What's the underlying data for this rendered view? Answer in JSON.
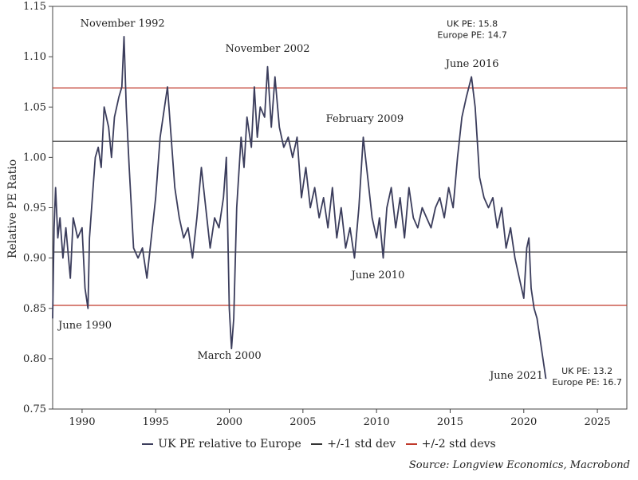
{
  "chart_data": {
    "type": "line",
    "ylabel": "Relative PE Ratio",
    "xlabel": "",
    "xlim": [
      1988,
      2027
    ],
    "ylim": [
      0.75,
      1.15
    ],
    "x_ticks": [
      1990,
      1995,
      2000,
      2005,
      2010,
      2015,
      2020,
      2025
    ],
    "y_ticks": [
      0.75,
      0.8,
      0.85,
      0.9,
      0.95,
      1.0,
      1.05,
      1.1,
      1.15
    ],
    "series": [
      {
        "name": "UK PE relative to Europe",
        "color": "#3b3d5c",
        "x": [
          1988.0,
          1988.1,
          1988.2,
          1988.35,
          1988.5,
          1988.7,
          1988.9,
          1989.2,
          1989.4,
          1989.7,
          1990.0,
          1990.2,
          1990.4,
          1990.5,
          1990.7,
          1990.9,
          1991.1,
          1991.3,
          1991.5,
          1991.8,
          1992.0,
          1992.2,
          1992.5,
          1992.7,
          1992.85,
          1993.0,
          1993.2,
          1993.5,
          1993.8,
          1994.1,
          1994.4,
          1994.7,
          1995.0,
          1995.3,
          1995.6,
          1995.8,
          1996.0,
          1996.3,
          1996.6,
          1996.9,
          1997.2,
          1997.5,
          1997.8,
          1998.1,
          1998.4,
          1998.7,
          1999.0,
          1999.3,
          1999.6,
          1999.8,
          2000.0,
          2000.15,
          2000.3,
          2000.5,
          2000.8,
          2001.0,
          2001.2,
          2001.5,
          2001.7,
          2001.9,
          2002.1,
          2002.4,
          2002.6,
          2002.85,
          2003.1,
          2003.4,
          2003.7,
          2004.0,
          2004.3,
          2004.6,
          2004.9,
          2005.2,
          2005.5,
          2005.8,
          2006.1,
          2006.4,
          2006.7,
          2007.0,
          2007.3,
          2007.6,
          2007.9,
          2008.2,
          2008.5,
          2008.8,
          2009.1,
          2009.4,
          2009.7,
          2010.0,
          2010.2,
          2010.45,
          2010.7,
          2011.0,
          2011.3,
          2011.6,
          2011.9,
          2012.2,
          2012.5,
          2012.8,
          2013.1,
          2013.4,
          2013.7,
          2014.0,
          2014.3,
          2014.6,
          2014.9,
          2015.2,
          2015.5,
          2015.8,
          2016.1,
          2016.45,
          2016.7,
          2017.0,
          2017.3,
          2017.6,
          2017.9,
          2018.2,
          2018.5,
          2018.8,
          2019.1,
          2019.4,
          2019.7,
          2020.0,
          2020.2,
          2020.35,
          2020.5,
          2020.7,
          2020.9,
          2021.1,
          2021.3,
          2021.5
        ],
        "y": [
          0.84,
          0.93,
          0.97,
          0.92,
          0.94,
          0.9,
          0.93,
          0.88,
          0.94,
          0.92,
          0.93,
          0.87,
          0.85,
          0.92,
          0.96,
          1.0,
          1.01,
          0.99,
          1.05,
          1.03,
          1.0,
          1.04,
          1.06,
          1.07,
          1.12,
          1.05,
          0.99,
          0.91,
          0.9,
          0.91,
          0.88,
          0.92,
          0.96,
          1.02,
          1.05,
          1.07,
          1.03,
          0.97,
          0.94,
          0.92,
          0.93,
          0.9,
          0.94,
          0.99,
          0.95,
          0.91,
          0.94,
          0.93,
          0.96,
          1.0,
          0.85,
          0.81,
          0.84,
          0.95,
          1.02,
          0.99,
          1.04,
          1.01,
          1.07,
          1.02,
          1.05,
          1.04,
          1.09,
          1.03,
          1.08,
          1.03,
          1.01,
          1.02,
          1.0,
          1.02,
          0.96,
          0.99,
          0.95,
          0.97,
          0.94,
          0.96,
          0.93,
          0.97,
          0.92,
          0.95,
          0.91,
          0.93,
          0.9,
          0.95,
          1.02,
          0.98,
          0.94,
          0.92,
          0.94,
          0.9,
          0.95,
          0.97,
          0.93,
          0.96,
          0.92,
          0.97,
          0.94,
          0.93,
          0.95,
          0.94,
          0.93,
          0.95,
          0.96,
          0.94,
          0.97,
          0.95,
          1.0,
          1.04,
          1.06,
          1.08,
          1.05,
          0.98,
          0.96,
          0.95,
          0.96,
          0.93,
          0.95,
          0.91,
          0.93,
          0.9,
          0.88,
          0.86,
          0.91,
          0.92,
          0.87,
          0.85,
          0.84,
          0.82,
          0.8,
          0.78
        ]
      },
      {
        "name": "+/-1 std dev",
        "color": "#333333",
        "hlines": [
          1.016,
          0.906
        ]
      },
      {
        "name": "+/-2 std devs",
        "color": "#c0392b",
        "hlines": [
          1.069,
          0.853
        ]
      }
    ],
    "annotations": [
      {
        "text": "November 1992",
        "x": 1992.75,
        "y": 1.13
      },
      {
        "text": "November 2002",
        "x": 2002.6,
        "y": 1.105
      },
      {
        "text": "June 2016",
        "x": 2016.5,
        "y": 1.09
      },
      {
        "text": "February 2009",
        "x": 2009.2,
        "y": 1.035
      },
      {
        "text": "June 1990",
        "x": 1990.2,
        "y": 0.83
      },
      {
        "text": "March 2000",
        "x": 2000.0,
        "y": 0.8
      },
      {
        "text": "June 2010",
        "x": 2010.1,
        "y": 0.88
      },
      {
        "text": "June 2021",
        "x": 2019.5,
        "y": 0.78
      }
    ],
    "callouts": [
      {
        "lines": [
          "UK PE: 15.8",
          "Europe PE: 14.7"
        ],
        "x": 2016.5,
        "y": 1.13
      },
      {
        "lines": [
          "UK PE: 13.2",
          "Europe PE: 16.7"
        ],
        "x": 2024.3,
        "y": 0.785
      }
    ],
    "legend": "bottom-center",
    "grid": false
  },
  "legend_items": [
    {
      "label": "UK PE relative to Europe",
      "color": "#3b3d5c"
    },
    {
      "label": "+/-1 std dev",
      "color": "#333333"
    },
    {
      "label": "+/-2 std devs",
      "color": "#c0392b"
    }
  ],
  "source": "Source: Longview Economics, Macrobond"
}
